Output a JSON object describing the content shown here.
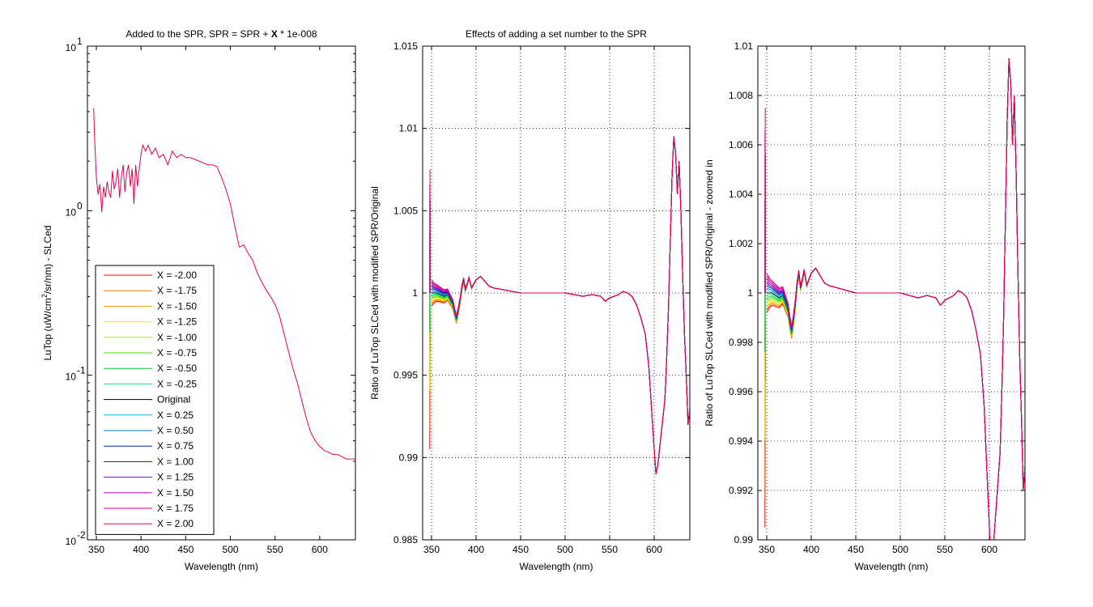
{
  "chart_data": [
    {
      "type": "line",
      "title_parts": [
        "Added to the SPR, SPR = SPR + ",
        "X",
        " * 1e-008"
      ],
      "xlabel": "Wavelength (nm)",
      "ylabel_parts": [
        "LuTop (uW/cm",
        "2",
        "/sr/nm) - SLCed"
      ],
      "xlim": [
        340,
        640
      ],
      "ylim": [
        0.01,
        10
      ],
      "yscale": "log",
      "xticks": [
        350,
        400,
        450,
        500,
        550,
        600
      ],
      "xtick_labels": [
        "350",
        "400",
        "450",
        "500",
        "550",
        "600"
      ],
      "ytick_exponents": [
        "1",
        "0",
        "-1",
        "-2"
      ],
      "ytick_base": "10",
      "grid": false,
      "legend_position": "bottom-left",
      "legend": [
        {
          "label": "X = -2.00",
          "color": "#ff0000"
        },
        {
          "label": "X = -1.75",
          "color": "#e07800"
        },
        {
          "label": "X = -1.50",
          "color": "#ffaa00"
        },
        {
          "label": "X = -1.25",
          "color": "#ffee00"
        },
        {
          "label": "X = -1.00",
          "color": "#aaee00"
        },
        {
          "label": "X = -0.75",
          "color": "#44dd00"
        },
        {
          "label": "X = -0.50",
          "color": "#00cc33"
        },
        {
          "label": "X = -0.25",
          "color": "#00ee88"
        },
        {
          "label": "Original",
          "color": "#000000"
        },
        {
          "label": "X = 0.25",
          "color": "#00bbdd"
        },
        {
          "label": "X = 0.50",
          "color": "#0077cc"
        },
        {
          "label": "X = 0.75",
          "color": "#0022bb"
        },
        {
          "label": "X = 1.00",
          "color": "#440099"
        },
        {
          "label": "X = 1.25",
          "color": "#8800cc"
        },
        {
          "label": "X = 1.50",
          "color": "#cc00cc"
        },
        {
          "label": "X = 1.75",
          "color": "#dd00aa"
        },
        {
          "label": "X = 2.00",
          "color": "#e8004a"
        }
      ],
      "series": [
        {
          "color": "#e8004a",
          "x": [
            347,
            348,
            350,
            352,
            354,
            356,
            358,
            360,
            362,
            364,
            366,
            368,
            370,
            372,
            374,
            376,
            378,
            380,
            382,
            384,
            386,
            388,
            390,
            392,
            394,
            396,
            398,
            400,
            402,
            405,
            408,
            412,
            416,
            420,
            425,
            430,
            435,
            440,
            445,
            450,
            455,
            460,
            465,
            470,
            475,
            480,
            485,
            490,
            495,
            500,
            505,
            510,
            515,
            520,
            525,
            530,
            535,
            540,
            545,
            550,
            555,
            560,
            565,
            570,
            575,
            580,
            585,
            590,
            595,
            600,
            605,
            610,
            615,
            620,
            625,
            630,
            635,
            640
          ],
          "y": [
            4.2,
            2.8,
            1.6,
            1.25,
            1.45,
            0.98,
            1.4,
            1.2,
            1.5,
            1.3,
            1.2,
            1.75,
            1.35,
            1.5,
            1.8,
            1.2,
            1.6,
            1.9,
            1.3,
            1.7,
            1.9,
            1.4,
            1.8,
            1.1,
            1.9,
            1.4,
            1.8,
            2.2,
            2.5,
            2.3,
            2.5,
            2.2,
            2.4,
            2.1,
            2.2,
            1.9,
            2.3,
            2.1,
            2.2,
            2.1,
            2.1,
            2.05,
            2.0,
            1.95,
            1.9,
            1.9,
            1.85,
            1.6,
            1.35,
            1.1,
            0.8,
            0.6,
            0.62,
            0.55,
            0.5,
            0.42,
            0.37,
            0.33,
            0.3,
            0.27,
            0.23,
            0.18,
            0.14,
            0.11,
            0.09,
            0.07,
            0.055,
            0.045,
            0.04,
            0.037,
            0.035,
            0.034,
            0.033,
            0.033,
            0.032,
            0.031,
            0.031,
            0.031
          ]
        }
      ]
    },
    {
      "type": "line",
      "title": "Effects of adding a set number to the SPR",
      "xlabel": "Wavelength (nm)",
      "ylabel": "Ratio of LuTop SLCed with modified SPR/Original",
      "xlim": [
        340,
        640
      ],
      "ylim": [
        0.985,
        1.015
      ],
      "xticks": [
        350,
        400,
        450,
        500,
        550,
        600
      ],
      "xtick_labels": [
        "350",
        "400",
        "450",
        "500",
        "550",
        "600"
      ],
      "yticks": [
        0.985,
        0.99,
        0.995,
        1,
        1.005,
        1.01,
        1.015
      ],
      "ytick_labels": [
        "0.985",
        "0.99",
        "0.995",
        "1",
        "1.005",
        "1.01",
        "1.015"
      ],
      "grid": true,
      "series_base_x": [
        350,
        353,
        356,
        360,
        364,
        368,
        372,
        374,
        376,
        378,
        380,
        382,
        384,
        386,
        388,
        390,
        392,
        395,
        400,
        405,
        410,
        415,
        420,
        430,
        440,
        450,
        460,
        470,
        480,
        490,
        500,
        510,
        520,
        530,
        540,
        545,
        550,
        555,
        560,
        565,
        570,
        575,
        580,
        585,
        590,
        594,
        597,
        600,
        602,
        604,
        606,
        608,
        610,
        612,
        614,
        616,
        618,
        620,
        622,
        624,
        626,
        628,
        630,
        632,
        634,
        636,
        638,
        640
      ],
      "series_base_y": [
        1.0,
        1.0,
        1.0,
        0.9999,
        0.9998,
        0.9999,
        0.9995,
        0.9993,
        0.9988,
        0.9984,
        0.9989,
        0.9995,
        1.0003,
        1.0008,
        1.0002,
        1.0005,
        1.0009,
        1.0003,
        1.0008,
        1.001,
        1.0007,
        1.0004,
        1.0003,
        1.0002,
        1.0001,
        1.0,
        1.0,
        1.0,
        1.0,
        1.0,
        1.0,
        0.9999,
        0.9998,
        0.9999,
        0.9998,
        0.9995,
        0.9997,
        0.9998,
        0.9999,
        1.0001,
        1.0,
        0.9998,
        0.9993,
        0.9985,
        0.9975,
        0.9955,
        0.993,
        0.9905,
        0.989,
        0.9895,
        0.9905,
        0.9915,
        0.9925,
        0.9935,
        0.996,
        0.999,
        1.003,
        1.007,
        1.0095,
        1.0085,
        1.006,
        1.008,
        1.005,
        1.001,
        0.9975,
        0.995,
        0.992,
        0.993
      ],
      "spread_amplitude": [
        0.0008,
        0.0006,
        0.0005,
        0.00045,
        0.0004,
        0.00035,
        0.0003,
        0.00028,
        0.00026,
        0.00024,
        0.00022,
        0.0002,
        0.00015,
        0.00012,
        0.0001,
        8e-05,
        6e-05,
        4e-05,
        2e-05,
        1e-05,
        0,
        0,
        0,
        0,
        0,
        0,
        0,
        0,
        0,
        0,
        0,
        0,
        0,
        0,
        0,
        0,
        0,
        0,
        0,
        0,
        0,
        0,
        0,
        0,
        0,
        0,
        0,
        0,
        0,
        0,
        0,
        0,
        0,
        0,
        0,
        0,
        0,
        0,
        0,
        0,
        0,
        0,
        0,
        0,
        0,
        0,
        0,
        0
      ],
      "spike": {
        "x": 348,
        "max": 1.0075,
        "min": 0.9905
      }
    },
    {
      "type": "line",
      "title": "",
      "xlabel": "Wavelength (nm)",
      "ylabel": "Ratio of LuTop SLCed with modified SPR/Original - zoomed in",
      "xlim": [
        340,
        640
      ],
      "ylim": [
        0.99,
        1.01
      ],
      "xticks": [
        350,
        400,
        450,
        500,
        550,
        600
      ],
      "xtick_labels": [
        "350",
        "400",
        "450",
        "500",
        "550",
        "600"
      ],
      "yticks": [
        0.99,
        0.992,
        0.994,
        0.996,
        0.998,
        1,
        1.002,
        1.004,
        1.006,
        1.008,
        1.01
      ],
      "ytick_labels": [
        "0.99",
        "0.992",
        "0.994",
        "0.996",
        "0.998",
        "1",
        "1.002",
        "1.004",
        "1.006",
        "1.008",
        "1.01"
      ],
      "grid": true,
      "spike": {
        "x": 348,
        "max": 1.0075,
        "min": 0.9905
      }
    }
  ]
}
